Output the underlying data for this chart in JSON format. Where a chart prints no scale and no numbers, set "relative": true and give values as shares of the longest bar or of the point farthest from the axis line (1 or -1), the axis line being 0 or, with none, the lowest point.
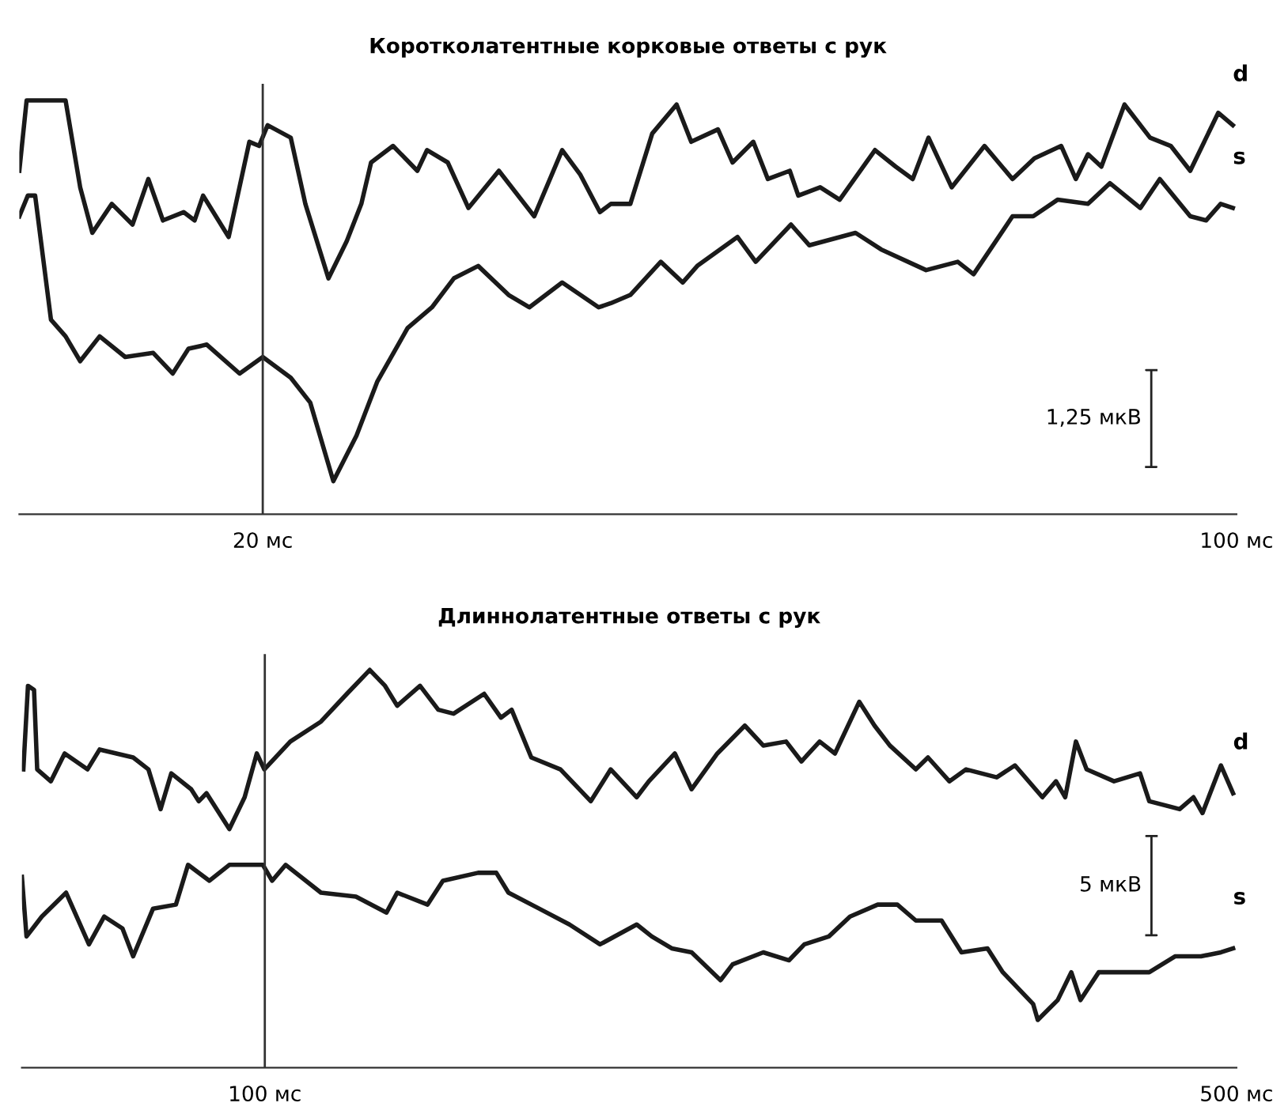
{
  "chart_data": [
    {
      "type": "line",
      "title": "Коротколатентные корковые ответы с рук",
      "relative": true,
      "xlim": [
        0,
        100
      ],
      "xticks": [
        {
          "value": 20,
          "label": "20 мс"
        },
        {
          "value": 100,
          "label": "100 мс"
        }
      ],
      "tick_labels": "x",
      "ref_lines": [
        {
          "axis": "x",
          "value": 20,
          "color": "#333333"
        }
      ],
      "annotations": [
        "1,25 мкВ"
      ],
      "series": [
        {
          "name": "d",
          "color": "#1a1a1a",
          "x": [
            0,
            0.6,
            3.8,
            5.0,
            6.0,
            7.6,
            9.3,
            10.6,
            11.8,
            13.5,
            14.4,
            15.1,
            17.2,
            18.9,
            19.7,
            20.4,
            22.3,
            23.5,
            25.4,
            26.9,
            28.1,
            28.9,
            30.7,
            32.7,
            33.5,
            35.2,
            36.9,
            39.4,
            42.3,
            44.6,
            46.1,
            47.7,
            48.6,
            50.2,
            52.0,
            54.0,
            55.2,
            57.4,
            58.6,
            60.3,
            61.5,
            63.3,
            64.0,
            65.8,
            67.4,
            70.3,
            72.0,
            73.4,
            74.7,
            76.6,
            79.3,
            81.6,
            83.4,
            85.6,
            86.8,
            87.8,
            88.9,
            90.8,
            92.9,
            94.6,
            96.2,
            98.5,
            99.7
          ],
          "values": [
            0.83,
            1.0,
            1.0,
            0.79,
            0.68,
            0.75,
            0.7,
            0.81,
            0.71,
            0.73,
            0.71,
            0.77,
            0.67,
            0.9,
            0.89,
            0.94,
            0.91,
            0.75,
            0.57,
            0.66,
            0.75,
            0.85,
            0.89,
            0.83,
            0.88,
            0.85,
            0.74,
            0.83,
            0.72,
            0.88,
            0.82,
            0.73,
            0.75,
            0.75,
            0.92,
            0.99,
            0.9,
            0.93,
            0.85,
            0.9,
            0.81,
            0.83,
            0.77,
            0.79,
            0.76,
            0.88,
            0.84,
            0.81,
            0.91,
            0.79,
            0.89,
            0.81,
            0.86,
            0.89,
            0.81,
            0.87,
            0.84,
            0.99,
            0.91,
            0.89,
            0.83,
            0.97,
            0.94
          ]
        },
        {
          "name": "s",
          "color": "#1a1a1a",
          "x": [
            0,
            0.7,
            1.3,
            2.6,
            3.8,
            5.0,
            6.6,
            8.7,
            11.0,
            12.6,
            13.9,
            15.4,
            18.1,
            20.0,
            22.3,
            23.9,
            25.8,
            27.7,
            29.4,
            31.9,
            33.9,
            35.7,
            37.7,
            40.2,
            41.9,
            44.6,
            47.6,
            48.6,
            50.2,
            52.7,
            54.5,
            55.7,
            59.0,
            60.5,
            63.4,
            64.9,
            68.7,
            70.8,
            74.5,
            77.1,
            78.4,
            81.6,
            83.3,
            85.3,
            87.8,
            89.6,
            92.1,
            93.7,
            96.2,
            97.5,
            98.7,
            99.7
          ],
          "values": [
            0.72,
            0.77,
            0.77,
            0.47,
            0.43,
            0.37,
            0.43,
            0.38,
            0.39,
            0.34,
            0.4,
            0.41,
            0.34,
            0.38,
            0.33,
            0.27,
            0.08,
            0.19,
            0.32,
            0.45,
            0.5,
            0.57,
            0.6,
            0.53,
            0.5,
            0.56,
            0.5,
            0.51,
            0.53,
            0.61,
            0.56,
            0.6,
            0.67,
            0.61,
            0.7,
            0.65,
            0.68,
            0.64,
            0.59,
            0.61,
            0.58,
            0.72,
            0.72,
            0.76,
            0.75,
            0.8,
            0.74,
            0.81,
            0.72,
            0.71,
            0.75,
            0.74
          ]
        }
      ]
    },
    {
      "type": "line",
      "title": "Длиннолатентные ответы с рук",
      "relative": true,
      "xlim": [
        0,
        500
      ],
      "xticks": [
        {
          "value": 100,
          "label": "100 мс"
        },
        {
          "value": 500,
          "label": "500 мс"
        }
      ],
      "tick_labels": "x",
      "ref_lines": [
        {
          "axis": "x",
          "value": 100,
          "color": "#333333"
        }
      ],
      "annotations": [
        "5 мкВ"
      ],
      "series": [
        {
          "name": "d",
          "color": "#1a1a1a",
          "x": [
            0.6,
            2.5,
            5.0,
            6.3,
            11.9,
            17.6,
            27.0,
            32.0,
            45.8,
            52.1,
            57.1,
            61.5,
            69.7,
            72.8,
            76.0,
            85.4,
            91.7,
            96.7,
            99.8,
            110.5,
            123.1,
            133.8,
            143.2,
            149.5,
            154.5,
            163.9,
            171.4,
            177.7,
            190.3,
            197.2,
            201.6,
            209.7,
            221.7,
            234.2,
            242.4,
            253.1,
            258.1,
            268.8,
            275.7,
            286.3,
            297.6,
            305.2,
            314.6,
            320.9,
            328.4,
            334.7,
            344.7,
            351.0,
            357.3,
            368.0,
            373.0,
            381.8,
            388.7,
            401.3,
            408.8,
            420.1,
            425.7,
            429.5,
            433.9,
            438.3,
            449.6,
            460.3,
            464.1,
            476.6,
            482.3,
            486.0,
            493.6,
            498.6
          ],
          "values": [
            0.75,
            0.96,
            0.95,
            0.75,
            0.72,
            0.79,
            0.75,
            0.8,
            0.78,
            0.75,
            0.65,
            0.74,
            0.7,
            0.67,
            0.69,
            0.6,
            0.68,
            0.79,
            0.75,
            0.82,
            0.87,
            0.94,
            1.0,
            0.96,
            0.91,
            0.96,
            0.9,
            0.89,
            0.94,
            0.88,
            0.9,
            0.78,
            0.75,
            0.67,
            0.75,
            0.68,
            0.72,
            0.79,
            0.7,
            0.79,
            0.86,
            0.81,
            0.82,
            0.77,
            0.82,
            0.79,
            0.92,
            0.86,
            0.81,
            0.75,
            0.78,
            0.72,
            0.75,
            0.73,
            0.76,
            0.68,
            0.72,
            0.68,
            0.82,
            0.75,
            0.72,
            0.74,
            0.67,
            0.65,
            0.68,
            0.64,
            0.76,
            0.69
          ]
        },
        {
          "name": "s",
          "color": "#1a1a1a",
          "x": [
            0,
            1.9,
            8.2,
            18.2,
            27.6,
            33.9,
            41.4,
            45.8,
            54.0,
            63.4,
            68.4,
            77.2,
            85.4,
            99.2,
            103.0,
            108.6,
            123.1,
            137.5,
            150.1,
            154.5,
            167.0,
            173.3,
            187.8,
            195.3,
            200.3,
            212.9,
            225.4,
            238.0,
            253.1,
            259.3,
            267.5,
            275.7,
            287.6,
            292.6,
            305.2,
            315.8,
            322.1,
            332.2,
            340.9,
            352.3,
            360.4,
            368.0,
            378.6,
            386.8,
            397.5,
            403.8,
            416.3,
            418.2,
            426.4,
            432.0,
            435.8,
            443.3,
            454.0,
            464.1,
            474.7,
            485.4,
            493.6,
            498.6
          ],
          "values": [
            0.48,
            0.33,
            0.38,
            0.44,
            0.31,
            0.38,
            0.35,
            0.28,
            0.4,
            0.41,
            0.51,
            0.47,
            0.51,
            0.51,
            0.47,
            0.51,
            0.44,
            0.43,
            0.39,
            0.44,
            0.41,
            0.47,
            0.49,
            0.49,
            0.44,
            0.4,
            0.36,
            0.31,
            0.36,
            0.33,
            0.3,
            0.29,
            0.22,
            0.26,
            0.29,
            0.27,
            0.31,
            0.33,
            0.38,
            0.41,
            0.41,
            0.37,
            0.37,
            0.29,
            0.3,
            0.24,
            0.16,
            0.12,
            0.17,
            0.24,
            0.17,
            0.24,
            0.24,
            0.24,
            0.28,
            0.28,
            0.29,
            0.3
          ]
        }
      ]
    }
  ]
}
